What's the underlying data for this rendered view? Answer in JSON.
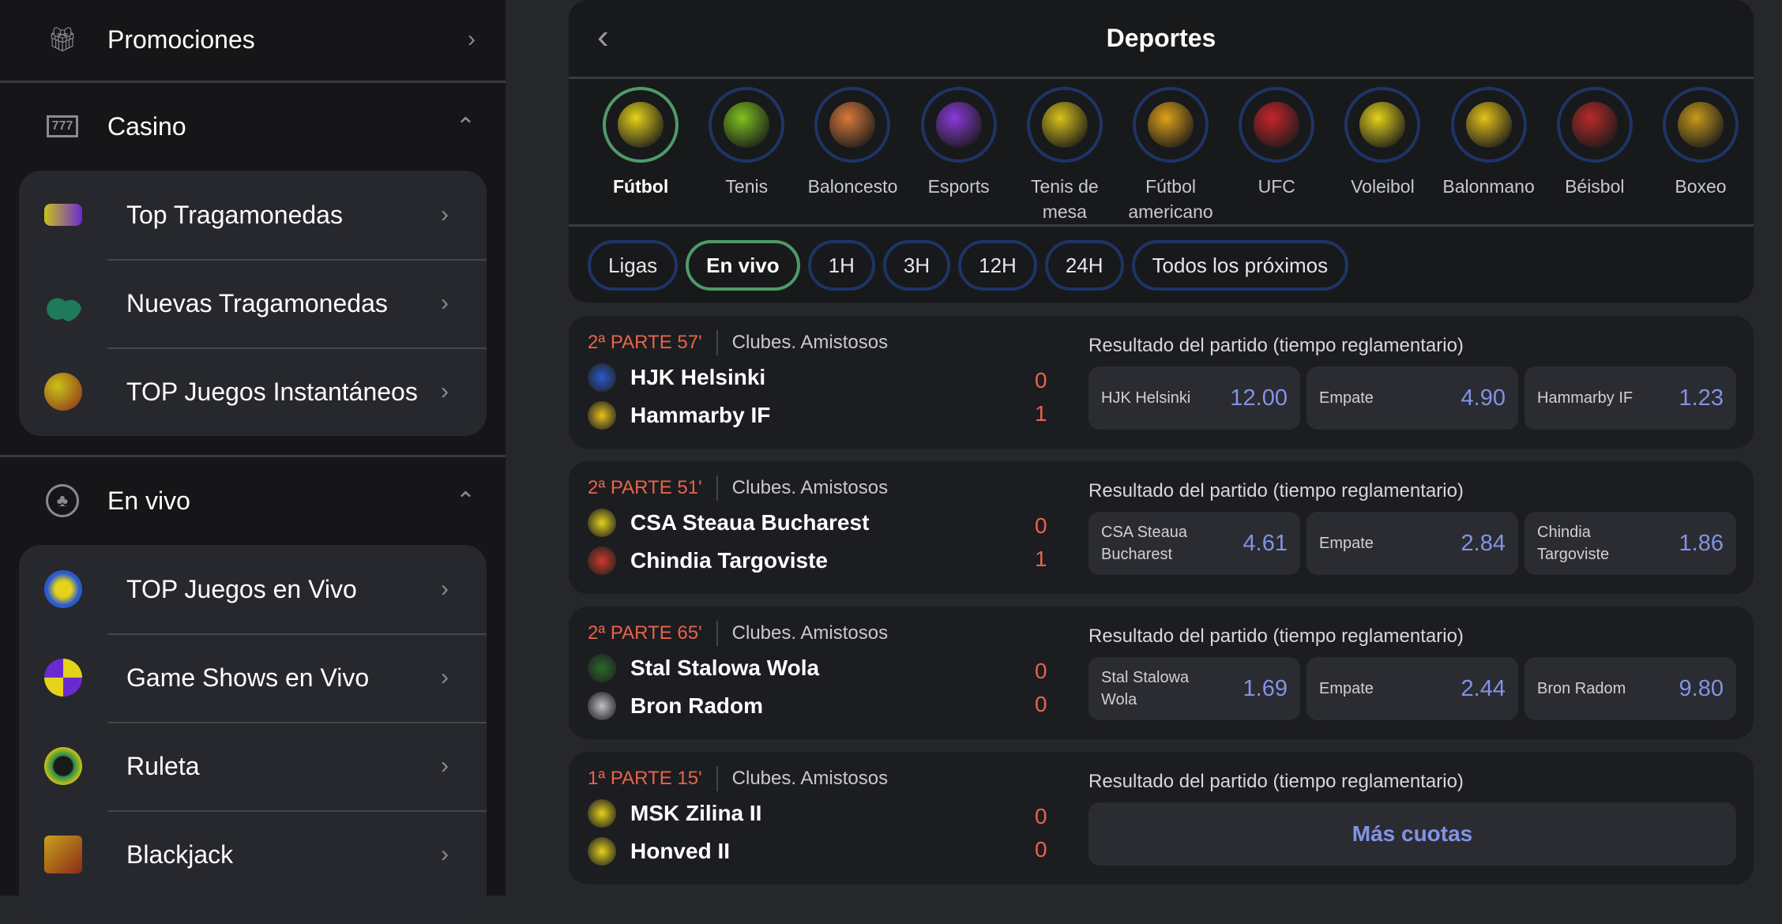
{
  "sidebar": {
    "promo": {
      "label": "Promociones",
      "icon": "gift-icon"
    },
    "casino": {
      "label": "Casino",
      "icon": "slot-777-icon",
      "items": [
        {
          "label": "Top Tragamonedas",
          "icon": "slot-machine-icon"
        },
        {
          "label": "Nuevas Tragamonedas",
          "icon": "cherry-icon"
        },
        {
          "label": "TOP Juegos Instantáneos",
          "icon": "bomb-icon"
        }
      ]
    },
    "live": {
      "label": "En vivo",
      "icon": "casino-chip-icon",
      "items": [
        {
          "label": "TOP Juegos en Vivo",
          "icon": "chips-icon"
        },
        {
          "label": "Game Shows en Vivo",
          "icon": "wheel-icon"
        },
        {
          "label": "Ruleta",
          "icon": "roulette-icon"
        },
        {
          "label": "Blackjack",
          "icon": "cards-icon"
        }
      ]
    }
  },
  "header": {
    "title": "Deportes"
  },
  "sports": [
    {
      "label": "Fútbol",
      "active": true,
      "color": "#e5d21a"
    },
    {
      "label": "Tenis",
      "color": "#7ec21f"
    },
    {
      "label": "Baloncesto",
      "color": "#d97a3a"
    },
    {
      "label": "Esports",
      "color": "#8a3ad9"
    },
    {
      "label": "Tenis de mesa",
      "color": "#d9c21a"
    },
    {
      "label": "Fútbol americano",
      "color": "#e0a21a"
    },
    {
      "label": "UFC",
      "color": "#c8242a"
    },
    {
      "label": "Voleibol",
      "color": "#e5d21a"
    },
    {
      "label": "Balonmano",
      "color": "#e5c21a"
    },
    {
      "label": "Béisbol",
      "color": "#b82a2a"
    },
    {
      "label": "Boxeo",
      "color": "#c89a1a"
    }
  ],
  "filters": [
    {
      "label": "Ligas"
    },
    {
      "label": "En vivo",
      "active": true
    },
    {
      "label": "1H"
    },
    {
      "label": "3H"
    },
    {
      "label": "12H"
    },
    {
      "label": "24H"
    },
    {
      "label": "Todos los próximos"
    }
  ],
  "matches": [
    {
      "time": "2ª PARTE 57'",
      "league": "Clubes. Amistosos",
      "home": "HJK Helsinki",
      "away": "Hammarby IF",
      "home_score": "0",
      "away_score": "1",
      "market": "Resultado del partido (tiempo reglamentario)",
      "odds": [
        {
          "label": "HJK Helsinki",
          "value": "12.00"
        },
        {
          "label": "Empate",
          "value": "4.90"
        },
        {
          "label": "Hammarby IF",
          "value": "1.23"
        }
      ]
    },
    {
      "time": "2ª PARTE 51'",
      "league": "Clubes. Amistosos",
      "home": "CSA Steaua Bucharest",
      "away": "Chindia Targoviste",
      "home_score": "0",
      "away_score": "1",
      "market": "Resultado del partido (tiempo reglamentario)",
      "odds": [
        {
          "label": "CSA Steaua Bucharest",
          "value": "4.61"
        },
        {
          "label": "Empate",
          "value": "2.84"
        },
        {
          "label": "Chindia Targoviste",
          "value": "1.86"
        }
      ]
    },
    {
      "time": "2ª PARTE 65'",
      "league": "Clubes. Amistosos",
      "home": "Stal Stalowa Wola",
      "away": "Bron Radom",
      "home_score": "0",
      "away_score": "0",
      "market": "Resultado del partido (tiempo reglamentario)",
      "odds": [
        {
          "label": "Stal Stalowa Wola",
          "value": "1.69"
        },
        {
          "label": "Empate",
          "value": "2.44"
        },
        {
          "label": "Bron Radom",
          "value": "9.80"
        }
      ]
    },
    {
      "time": "1ª PARTE 15'",
      "league": "Clubes. Amistosos",
      "home": "MSK Zilina II",
      "away": "Honved II",
      "home_score": "0",
      "away_score": "0",
      "market": "Resultado del partido (tiempo reglamentario)",
      "more_label": "Más cuotas"
    }
  ]
}
